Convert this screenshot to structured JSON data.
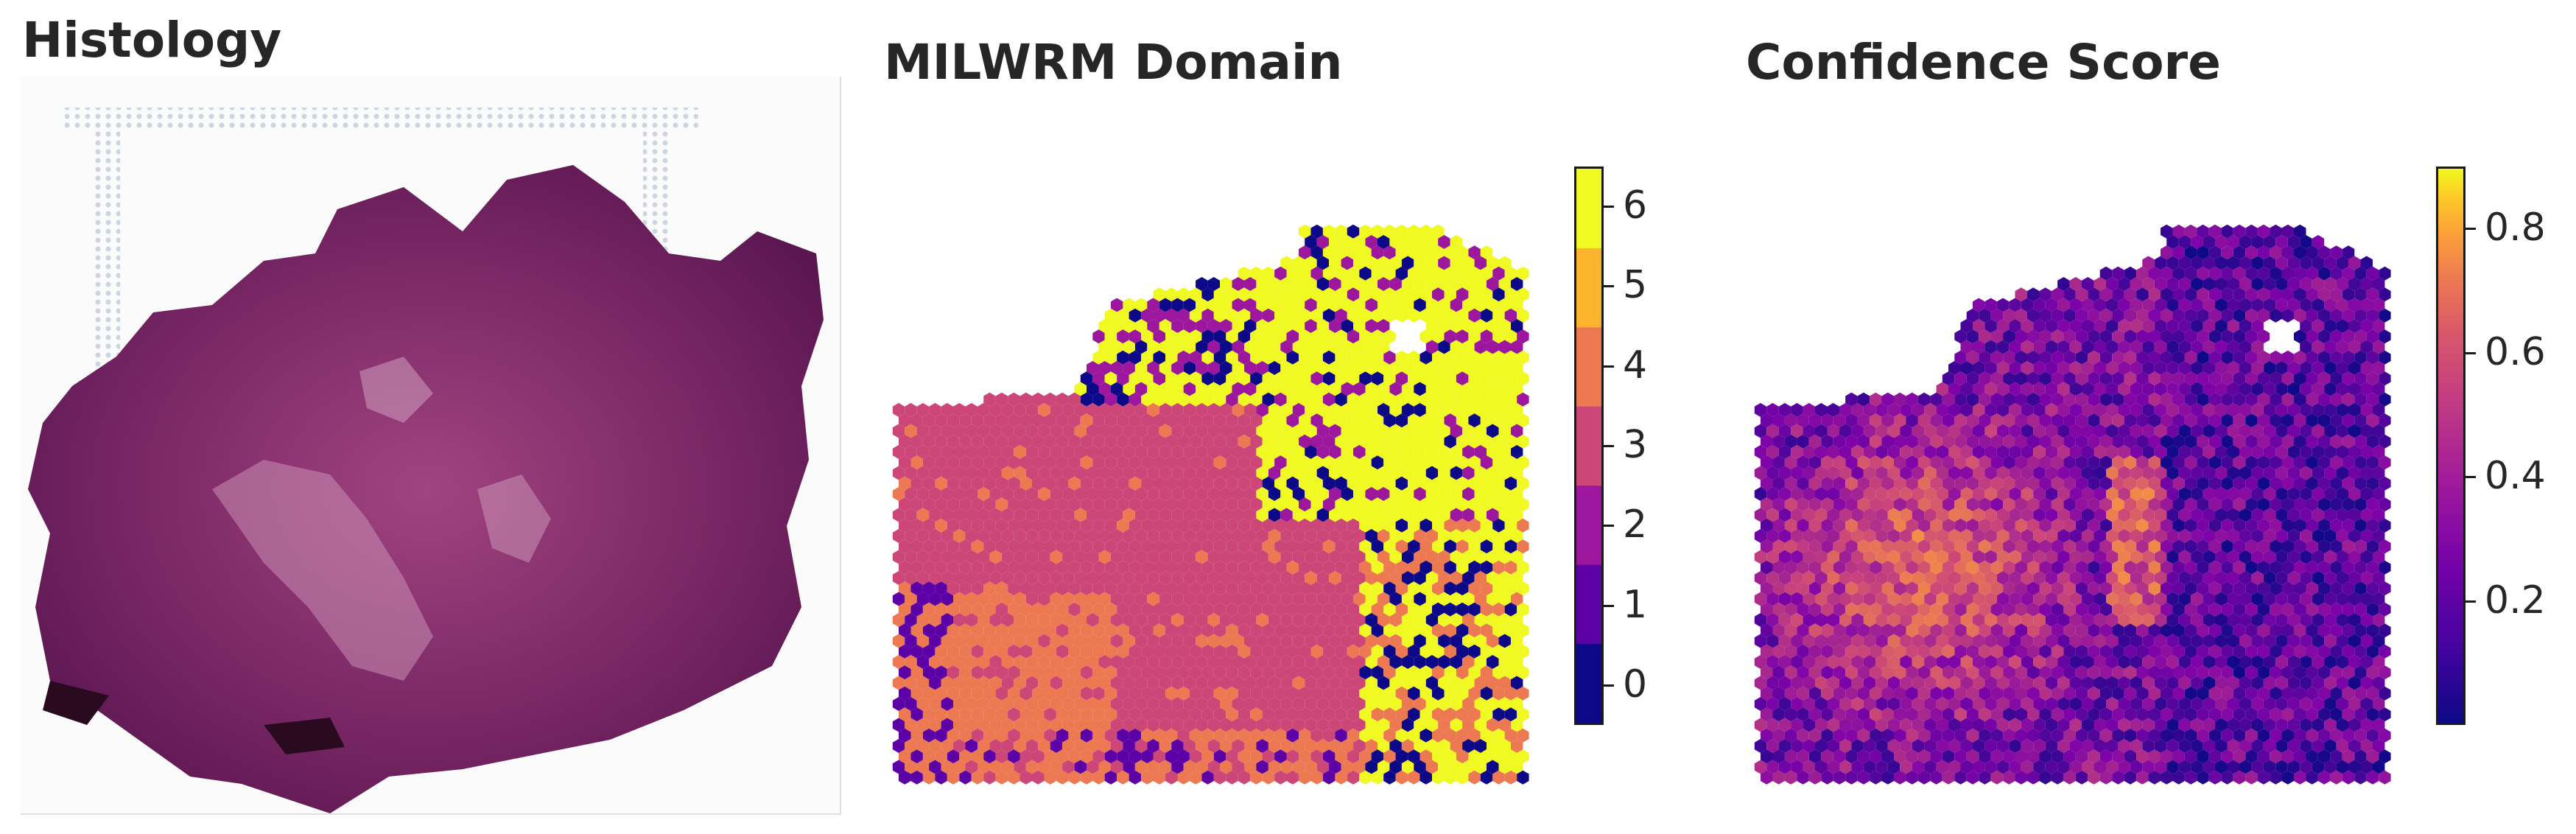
{
  "panels": {
    "histology": {
      "title": "Histology"
    },
    "domain": {
      "title": "MILWRM Domain"
    },
    "confidence": {
      "title": "Confidence Score"
    }
  },
  "colorbars": {
    "domain": {
      "colormap": "plasma",
      "categories": [
        "0",
        "1",
        "2",
        "3",
        "4",
        "5",
        "6"
      ],
      "colors": [
        "#0d0887",
        "#5c01a6",
        "#9c179e",
        "#cc4778",
        "#ed7953",
        "#fdb42f",
        "#f0f921"
      ]
    },
    "confidence": {
      "colormap": "plasma",
      "range": [
        0.0,
        0.9
      ],
      "ticks": [
        "0.2",
        "0.4",
        "0.6",
        "0.8"
      ],
      "tick_values": [
        0.2,
        0.4,
        0.6,
        0.8
      ]
    }
  },
  "colors": {
    "title_text": "#262626",
    "tissue": "#6b1f5c",
    "tissue_light": "#c98fb4",
    "background": "#ffffff"
  }
}
